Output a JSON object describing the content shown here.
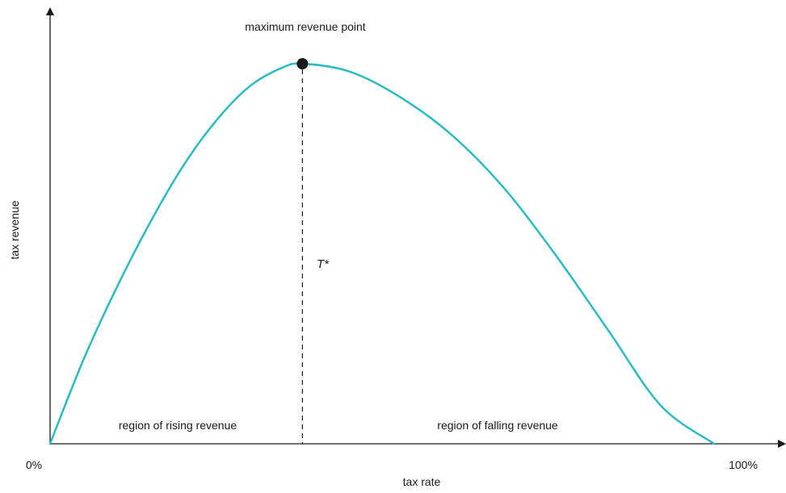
{
  "chart_data": {
    "type": "line",
    "title": "",
    "xlabel": "tax rate",
    "ylabel": "tax revenue",
    "x_tick_labels": [
      "0%",
      "100%"
    ],
    "xlim": [
      0,
      100
    ],
    "ylim": [
      0,
      100
    ],
    "grid": false,
    "series": [
      {
        "color": "#29bcc1",
        "points": [
          {
            "x": 0,
            "y": 0
          },
          {
            "x": 5,
            "y": 22
          },
          {
            "x": 10,
            "y": 41
          },
          {
            "x": 15,
            "y": 58
          },
          {
            "x": 20,
            "y": 73
          },
          {
            "x": 25,
            "y": 85
          },
          {
            "x": 30,
            "y": 94
          },
          {
            "x": 35,
            "y": 99
          },
          {
            "x": 38,
            "y": 100
          },
          {
            "x": 45,
            "y": 98
          },
          {
            "x": 52,
            "y": 92
          },
          {
            "x": 60,
            "y": 82
          },
          {
            "x": 68,
            "y": 68
          },
          {
            "x": 76,
            "y": 50
          },
          {
            "x": 84,
            "y": 30
          },
          {
            "x": 92,
            "y": 10
          },
          {
            "x": 100,
            "y": 0
          }
        ]
      }
    ],
    "max_point": {
      "x": 38,
      "y": 100,
      "marker_color": "#1a1a1a"
    },
    "annotations": {
      "max_label": "maximum revenue point",
      "t_star": "T*",
      "rising_region": "region of rising revenue",
      "falling_region": "region of falling revenue"
    }
  }
}
